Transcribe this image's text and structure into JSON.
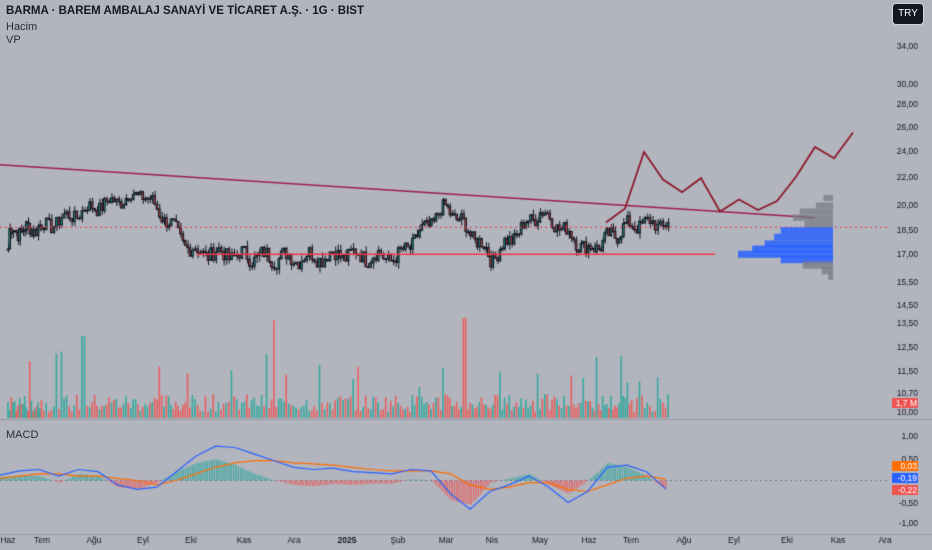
{
  "header": {
    "title": "BARMA · BAREM AMBALAJ SANAYİ VE TİCARET A.Ş. · 1G · BIST",
    "indicators": [
      "Hacim",
      "VP"
    ],
    "currency": "TRY"
  },
  "macd_label": "MACD",
  "colors": {
    "up": "#26a69a",
    "down": "#ef5350",
    "trendline": "#9c1f4a",
    "support": "#f23645",
    "projection": "#8b1a2b",
    "vp_value_area": "#2962ff",
    "vp_outside": "#787b86",
    "macd_line": "#2962ff",
    "signal_line": "#ff6d00",
    "background": "#b2b5be"
  },
  "chart_data": [
    {
      "type": "candlestick",
      "name": "price",
      "scale": "log",
      "price_ticks": [
        "34,00",
        "30,00",
        "28,00",
        "26,00",
        "24,00",
        "22,00",
        "20,00",
        "18,50",
        "17,00",
        "15,50",
        "14,50",
        "13,50",
        "12,50",
        "11,50",
        "10,70",
        "10,00"
      ],
      "x_ticks": [
        "Haz",
        "Tem",
        "Ağu",
        "Eyl",
        "Eki",
        "Kas",
        "Ara",
        "2025",
        "Şub",
        "Mar",
        "Nis",
        "May",
        "Haz",
        "Tem",
        "Ağu",
        "Eyl",
        "Eki",
        "Kas",
        "Ara"
      ],
      "ohlc_start": 17.3,
      "ohlc_end": 18.9,
      "approx_closes": [
        {
          "month": "Haz",
          "close": 18.3
        },
        {
          "month": "Tem",
          "close": 18.6
        },
        {
          "month": "Ağu",
          "close": 19.9
        },
        {
          "month": "Eyl",
          "close": 20.8
        },
        {
          "month": "Eki",
          "close": 17.2
        },
        {
          "month": "Kas",
          "close": 16.9
        },
        {
          "month": "Ara",
          "close": 16.8
        },
        {
          "month": "2025",
          "close": 17.0
        },
        {
          "month": "Şub",
          "close": 16.8
        },
        {
          "month": "Mar",
          "close": 19.9
        },
        {
          "month": "Nis",
          "close": 16.8
        },
        {
          "month": "May",
          "close": 19.6
        },
        {
          "month": "Haz",
          "close": 17.2
        },
        {
          "month": "Tem",
          "close": 18.8
        }
      ],
      "trendline": {
        "from": 22.9,
        "to": 19.2
      },
      "support_level": 17.0,
      "projection_path": [
        18.9,
        19.8,
        23.9,
        21.8,
        20.9,
        21.9,
        19.6,
        20.4,
        19.7,
        20.3,
        22.0,
        24.3,
        23.4,
        25.5
      ],
      "volume_profile": {
        "bins": [
          {
            "price": 20.5,
            "volume": 0.1
          },
          {
            "price": 20.0,
            "volume": 0.18
          },
          {
            "price": 19.6,
            "volume": 0.35
          },
          {
            "price": 19.2,
            "volume": 0.42
          },
          {
            "price": 18.8,
            "volume": 0.3
          },
          {
            "price": 18.4,
            "volume": 0.55
          },
          {
            "price": 18.0,
            "volume": 0.62
          },
          {
            "price": 17.6,
            "volume": 0.72
          },
          {
            "price": 17.3,
            "volume": 0.85
          },
          {
            "price": 17.0,
            "volume": 1.0
          },
          {
            "price": 16.7,
            "volume": 0.55
          },
          {
            "price": 16.4,
            "volume": 0.32
          },
          {
            "price": 16.1,
            "volume": 0.12
          },
          {
            "price": 15.8,
            "volume": 0.05
          }
        ],
        "value_area": [
          16.6,
          18.6
        ]
      }
    },
    {
      "type": "bar",
      "name": "Hacim",
      "last_value_label": "1,7 M"
    },
    {
      "type": "line",
      "name": "MACD",
      "ylim": [
        -1.1,
        1.1
      ],
      "ticks": [
        "1,00",
        "0,50",
        "0,00",
        "-0,50",
        "-1,00"
      ],
      "series": [
        {
          "name": "",
          "values": [
            0.12,
            0.22,
            0.25,
            0.1,
            0.25,
            0.2,
            -0.1,
            -0.2,
            -0.15,
            0.2,
            0.55,
            0.78,
            0.75,
            0.6,
            0.45,
            0.3,
            0.25,
            0.28,
            0.2,
            0.18,
            0.15,
            0.25,
            0.22,
            -0.3,
            -0.65,
            -0.25,
            -0.1,
            0.1,
            -0.15,
            -0.5,
            -0.25,
            0.3,
            0.35,
            0.2,
            -0.19
          ]
        },
        {
          "name": "",
          "values": [
            0.05,
            0.1,
            0.15,
            0.15,
            0.1,
            0.1,
            0.05,
            0.0,
            -0.1,
            0.0,
            0.15,
            0.3,
            0.4,
            0.45,
            0.45,
            0.4,
            0.38,
            0.35,
            0.3,
            0.25,
            0.22,
            0.22,
            0.22,
            0.15,
            -0.1,
            -0.2,
            -0.15,
            -0.05,
            -0.05,
            -0.2,
            -0.25,
            -0.1,
            0.05,
            0.1,
            0.03
          ]
        }
      ],
      "value_labels": [
        "0,03",
        "-0,19",
        "-0,22"
      ]
    }
  ]
}
